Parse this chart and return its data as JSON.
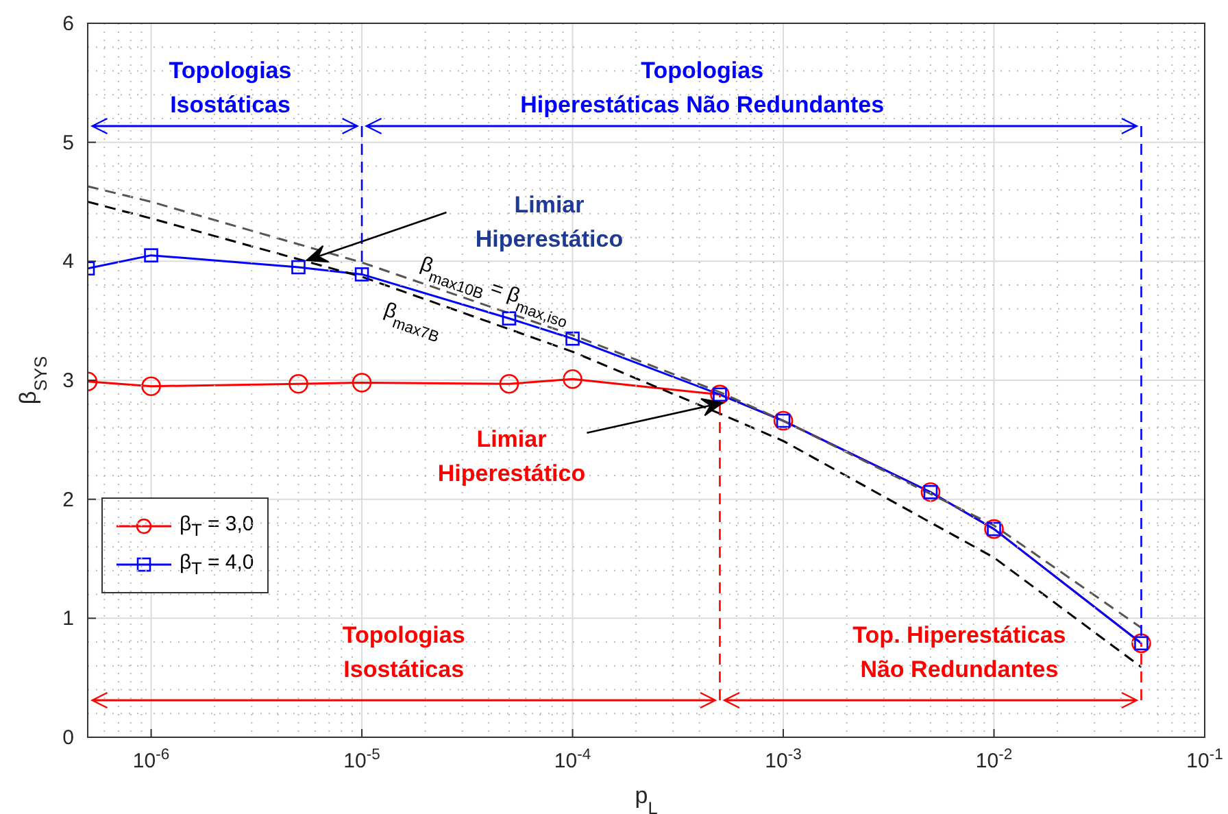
{
  "chart_data": {
    "type": "line",
    "xlabel": "p$_{L}$",
    "ylabel": "β$_{SYS}$",
    "x": [
      5e-07,
      1e-06,
      5e-06,
      1e-05,
      5e-05,
      0.0001,
      0.0005,
      0.001,
      0.005,
      0.01,
      0.05
    ],
    "series": [
      {
        "name": "β$_{T}$ = 3,0",
        "color": "#ff0000",
        "marker": "circle",
        "values": [
          2.99,
          2.95,
          2.97,
          2.98,
          2.97,
          3.01,
          2.88,
          2.66,
          2.06,
          1.75,
          0.79
        ]
      },
      {
        "name": "β$_{T}$ = 4,0",
        "color": "#0000ff",
        "marker": "square",
        "values": [
          3.94,
          4.05,
          3.95,
          3.89,
          3.52,
          3.35,
          2.88,
          2.66,
          2.06,
          1.75,
          0.79
        ]
      },
      {
        "color": "#555555",
        "marker": "none",
        "line_style": "dashed",
        "x": [
          5e-07,
          1e-06,
          1e-05,
          0.0001,
          0.0005,
          0.001,
          0.01,
          0.05
        ],
        "values": [
          4.63,
          4.5,
          3.99,
          3.38,
          2.9,
          2.66,
          1.78,
          0.92
        ]
      },
      {
        "color": "#000000",
        "marker": "none",
        "line_style": "dashed",
        "x": [
          5e-07,
          1e-06,
          1e-05,
          0.0001,
          0.0005,
          0.001,
          0.01,
          0.05
        ],
        "values": [
          4.5,
          4.36,
          3.87,
          3.24,
          2.72,
          2.49,
          1.51,
          0.59
        ]
      }
    ],
    "xlim": [
      5e-07,
      0.1
    ],
    "xticks": [
      {
        "value": 1e-06,
        "label": "10$^{-6}$"
      },
      {
        "value": 1e-05,
        "label": "10$^{-5}$"
      },
      {
        "value": 0.0001,
        "label": "10$^{-4}$"
      },
      {
        "value": 0.001,
        "label": "10$^{-3}$"
      },
      {
        "value": 0.01,
        "label": "10$^{-2}$"
      },
      {
        "value": 0.1,
        "label": "10$^{-1}$"
      }
    ],
    "ylim": [
      0,
      6
    ],
    "yticks": [
      0,
      1,
      2,
      3,
      4,
      5,
      6
    ],
    "log": "x",
    "grid": true,
    "legend": "bottom left",
    "ref_lines": [
      {
        "axis": "x",
        "value": 1e-05,
        "color": "#0000ff",
        "line_style": "dashed"
      },
      {
        "axis": "x",
        "value": 0.05,
        "color": "#0000ff",
        "line_style": "dashed"
      },
      {
        "axis": "x",
        "value": 0.0005,
        "color": "#ff0000",
        "line_style": "dashed"
      }
    ],
    "annotations": [
      "Topologias\nIsostáticas",
      "Topologias\nHiperestáticas Não Redundantes",
      {
        "text": "Limiar\nHiperestático",
        "x": 5e-06,
        "y": 3.95
      },
      {
        "text": "Limiar\nHiperestático",
        "x": 0.0005,
        "y": 2.88
      },
      "Topologias\nIsostáticas",
      "Top. Hiperestáticas\nNão Redundantes",
      "β$_{max10B}$ = β$_{max,iso}$",
      "β$_{max7B}$"
    ]
  }
}
